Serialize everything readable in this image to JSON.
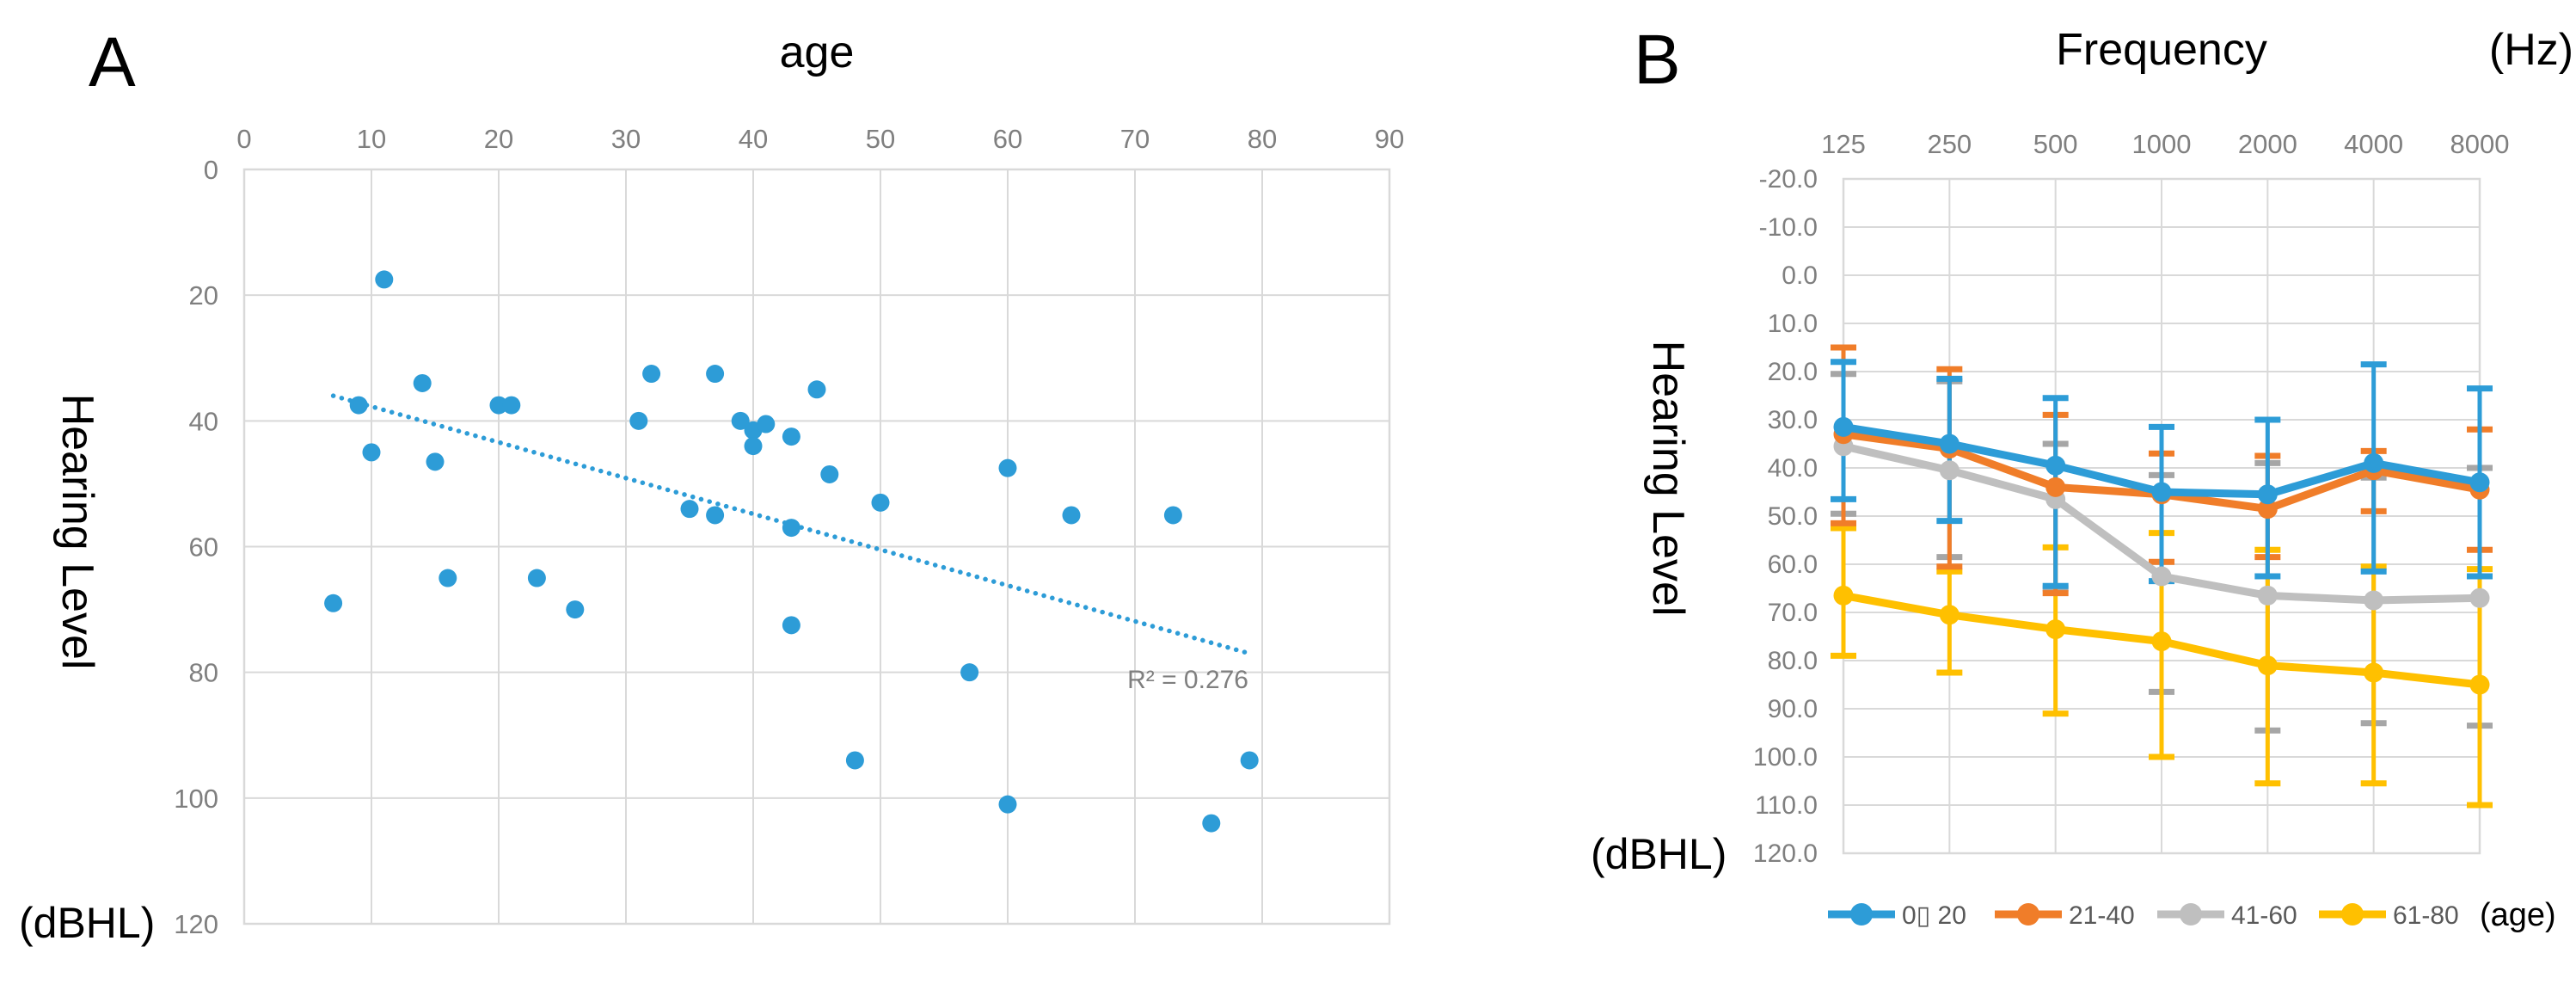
{
  "colors": {
    "blue": "#2D9CD7",
    "orange": "#F07D29",
    "gray": "#BFBFBF",
    "gray_dark": "#A6A6A6",
    "yellow": "#FFC000",
    "grid": "#D9D9D9",
    "axis_text": "#7F7F7F",
    "legend_text": "#595959",
    "title_text": "#000000"
  },
  "chart_data": [
    {
      "id": "panel-a",
      "type": "scatter",
      "panel_label": "A",
      "title": "age",
      "ylabel": "Hearing Level",
      "y_unit": "(dBHL)",
      "annotation": "R² = 0.276",
      "xlim": [
        0,
        90
      ],
      "ylim": [
        0,
        120
      ],
      "y_inverted": true,
      "grid": true,
      "x_tick_labels": [
        "0",
        "10",
        "20",
        "30",
        "40",
        "50",
        "60",
        "70",
        "80",
        "90"
      ],
      "y_tick_labels": [
        "0",
        "20",
        "40",
        "60",
        "80",
        "100",
        "120"
      ],
      "points": [
        [
          7,
          69
        ],
        [
          9,
          37.5
        ],
        [
          10,
          45
        ],
        [
          11,
          17.5
        ],
        [
          14,
          34
        ],
        [
          15,
          46.5
        ],
        [
          16,
          65
        ],
        [
          20,
          37.5
        ],
        [
          21,
          37.5
        ],
        [
          23,
          65
        ],
        [
          26,
          70
        ],
        [
          31,
          40
        ],
        [
          32,
          32.5
        ],
        [
          35,
          54
        ],
        [
          37,
          32.5
        ],
        [
          37,
          55
        ],
        [
          39,
          40
        ],
        [
          40,
          41.5
        ],
        [
          40,
          44
        ],
        [
          41,
          40.5
        ],
        [
          43,
          42.5
        ],
        [
          43,
          57
        ],
        [
          43,
          72.5
        ],
        [
          45,
          35
        ],
        [
          46,
          48.5
        ],
        [
          48,
          94
        ],
        [
          50,
          53
        ],
        [
          57,
          80
        ],
        [
          60,
          47.5
        ],
        [
          60,
          101
        ],
        [
          65,
          55
        ],
        [
          73,
          55
        ],
        [
          76,
          104
        ],
        [
          79,
          94
        ]
      ],
      "trendline": {
        "style": "dotted",
        "x1": 7,
        "y1": 36,
        "x2": 79,
        "y2": 77
      }
    },
    {
      "id": "panel-b",
      "type": "line",
      "panel_label": "B",
      "title": "Frequency",
      "title_unit": "(Hz)",
      "ylabel": "Hearing Level",
      "y_unit": "(dBHL)",
      "legend_suffix": "(age)",
      "legend_position": "bottom",
      "categories": [
        "125",
        "250",
        "500",
        "1000",
        "2000",
        "4000",
        "8000"
      ],
      "ylim": [
        -20,
        120
      ],
      "y_inverted": true,
      "grid": true,
      "y_tick_labels": [
        "-20.0",
        "-10.0",
        "0.0",
        "10.0",
        "20.0",
        "30.0",
        "40.0",
        "50.0",
        "60.0",
        "70.0",
        "80.0",
        "90.0",
        "100.0",
        "110.0",
        "120.0"
      ],
      "series": [
        {
          "name": "0▯ 20",
          "color_key": "blue",
          "values": [
            31.5,
            35,
            39.5,
            45,
            45.5,
            39,
            43
          ],
          "err_upper": [
            18,
            21.5,
            25.5,
            31.5,
            30,
            18.5,
            23.5
          ],
          "err_lower": [
            46.5,
            51,
            64.5,
            63.5,
            62.5,
            61.5,
            62.5
          ]
        },
        {
          "name": "21-40",
          "color_key": "orange",
          "values": [
            33,
            36,
            44,
            45.5,
            48.5,
            40.5,
            44.5
          ],
          "err_upper": [
            15,
            19.5,
            29,
            37,
            37.5,
            36.5,
            32
          ],
          "err_lower": [
            51.5,
            60.5,
            66,
            59.5,
            58.5,
            49,
            57
          ]
        },
        {
          "name": "41-60",
          "color_key": "gray",
          "values": [
            35.5,
            40.5,
            46.5,
            62.5,
            66.5,
            67.5,
            67
          ],
          "err_upper": [
            20.5,
            22,
            35,
            41.5,
            39,
            42,
            40
          ],
          "err_lower": [
            49.5,
            58.5,
            65,
            86.5,
            94.5,
            93,
            93.5
          ]
        },
        {
          "name": "61-80",
          "color_key": "yellow",
          "values": [
            66.5,
            70.5,
            73.5,
            76,
            81,
            82.5,
            85
          ],
          "err_upper": [
            52.5,
            61.5,
            56.5,
            53.5,
            57,
            60.5,
            61
          ],
          "err_lower": [
            79,
            82.5,
            91,
            100,
            105.5,
            105.5,
            110
          ]
        }
      ]
    }
  ]
}
